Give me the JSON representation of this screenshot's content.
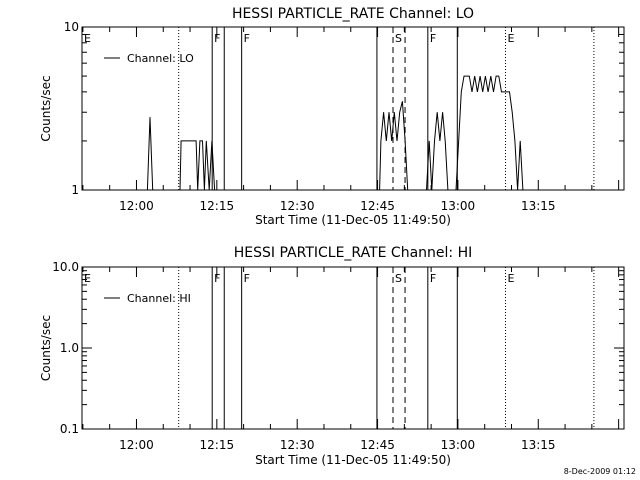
{
  "chart_data": [
    {
      "type": "line",
      "title": "HESSI PARTICLE_RATE Channel: LO",
      "xlabel": "Start Time (11-Dec-05 11:49:50)",
      "ylabel": "Counts/sec",
      "yscale": "log",
      "xlim": [
        "11:49:50",
        "13:31:00"
      ],
      "ylim": [
        1,
        10
      ],
      "y_ticks": [
        "1",
        "10"
      ],
      "x_ticks": [
        "12:00",
        "12:15",
        "12:30",
        "12:45",
        "13:00",
        "13:15"
      ],
      "legend": {
        "position": "top-left",
        "entries": [
          "Channel: LO"
        ]
      },
      "series": [
        {
          "name": "Channel: LO",
          "points": [
            [
              "12:02:02",
              1.0
            ],
            [
              "12:02:32",
              2.8
            ],
            [
              "12:03:02",
              1.0
            ],
            [
              "12:08:08",
              1.0
            ],
            [
              "12:08:20",
              2.0
            ],
            [
              "12:11:08",
              2.0
            ],
            [
              "12:11:26",
              1.0
            ],
            [
              "12:11:50",
              2.0
            ],
            [
              "12:12:20",
              2.0
            ],
            [
              "12:12:41",
              1.0
            ],
            [
              "12:13:02",
              2.0
            ],
            [
              "12:13:35",
              1.0
            ],
            [
              "12:14:05",
              2.0
            ],
            [
              "12:14:35",
              1.0
            ],
            [
              "12:45:23",
              1.0
            ],
            [
              "12:45:38",
              2.0
            ],
            [
              "12:46:08",
              3.0
            ],
            [
              "12:46:38",
              2.0
            ],
            [
              "12:47:08",
              3.0
            ],
            [
              "12:47:38",
              2.0
            ],
            [
              "12:48:08",
              3.0
            ],
            [
              "12:48:38",
              2.0
            ],
            [
              "12:49:08",
              3.0
            ],
            [
              "12:49:38",
              3.5
            ],
            [
              "12:50:08",
              2.0
            ],
            [
              "12:50:38",
              1.0
            ],
            [
              "12:54:08",
              1.0
            ],
            [
              "12:54:38",
              2.0
            ],
            [
              "12:55:08",
              1.0
            ],
            [
              "12:55:38",
              2.0
            ],
            [
              "12:56:08",
              3.0
            ],
            [
              "12:56:38",
              2.0
            ],
            [
              "12:57:08",
              3.0
            ],
            [
              "12:57:38",
              2.0
            ],
            [
              "12:58:08",
              1.0
            ],
            [
              "12:59:38",
              1.0
            ],
            [
              "13:00:38",
              4.0
            ],
            [
              "13:01:08",
              5.0
            ],
            [
              "13:02:08",
              5.0
            ],
            [
              "13:02:38",
              4.0
            ],
            [
              "13:03:08",
              5.0
            ],
            [
              "13:03:38",
              4.0
            ],
            [
              "13:04:08",
              5.0
            ],
            [
              "13:04:38",
              4.0
            ],
            [
              "13:05:08",
              5.0
            ],
            [
              "13:05:38",
              4.0
            ],
            [
              "13:06:08",
              5.0
            ],
            [
              "13:06:38",
              4.0
            ],
            [
              "13:07:08",
              5.0
            ],
            [
              "13:07:38",
              5.0
            ],
            [
              "13:08:08",
              4.0
            ],
            [
              "13:09:38",
              4.0
            ],
            [
              "13:10:08",
              3.0
            ],
            [
              "13:10:38",
              2.0
            ],
            [
              "13:11:08",
              1.0
            ],
            [
              "13:11:38",
              2.0
            ],
            [
              "13:12:08",
              1.0
            ]
          ]
        }
      ],
      "markers": [
        {
          "label": "E",
          "time": "11:49:50",
          "style": "none"
        },
        {
          "label": "",
          "time": "12:07:53",
          "style": "dotted"
        },
        {
          "label": "F",
          "time": "12:14:08",
          "style": "solid"
        },
        {
          "label": "",
          "time": "12:16:23",
          "style": "solid"
        },
        {
          "label": "F",
          "time": "12:19:38",
          "style": "solid"
        },
        {
          "label": "",
          "time": "12:44:53",
          "style": "solid"
        },
        {
          "label": "S",
          "time": "12:47:53",
          "style": "dashed"
        },
        {
          "label": "",
          "time": "12:50:08",
          "style": "dashed"
        },
        {
          "label": "F",
          "time": "12:54:23",
          "style": "solid"
        },
        {
          "label": "",
          "time": "12:59:53",
          "style": "solid"
        },
        {
          "label": "E",
          "time": "13:08:53",
          "style": "dotted"
        },
        {
          "label": "",
          "time": "13:25:23",
          "style": "dotted"
        }
      ]
    },
    {
      "type": "line",
      "title": "HESSI PARTICLE_RATE Channel: HI",
      "xlabel": "Start Time (11-Dec-05 11:49:50)",
      "ylabel": "Counts/sec",
      "yscale": "log",
      "xlim": [
        "11:49:50",
        "13:31:00"
      ],
      "ylim": [
        0.1,
        10
      ],
      "y_ticks": [
        "0.1",
        "1.0",
        "10.0"
      ],
      "x_ticks": [
        "12:00",
        "12:15",
        "12:30",
        "12:45",
        "13:00",
        "13:15"
      ],
      "legend": {
        "position": "top-left",
        "entries": [
          "Channel: HI"
        ]
      },
      "series": [
        {
          "name": "Channel: HI",
          "points": []
        }
      ],
      "markers": [
        {
          "label": "E",
          "time": "11:49:50",
          "style": "none"
        },
        {
          "label": "",
          "time": "12:07:53",
          "style": "dotted"
        },
        {
          "label": "F",
          "time": "12:14:08",
          "style": "solid"
        },
        {
          "label": "",
          "time": "12:16:23",
          "style": "solid"
        },
        {
          "label": "F",
          "time": "12:19:38",
          "style": "solid"
        },
        {
          "label": "",
          "time": "12:44:53",
          "style": "solid"
        },
        {
          "label": "S",
          "time": "12:47:53",
          "style": "dashed"
        },
        {
          "label": "",
          "time": "12:50:08",
          "style": "dashed"
        },
        {
          "label": "F",
          "time": "12:54:23",
          "style": "solid"
        },
        {
          "label": "",
          "time": "12:59:53",
          "style": "solid"
        },
        {
          "label": "E",
          "time": "13:08:53",
          "style": "dotted"
        },
        {
          "label": "",
          "time": "13:25:23",
          "style": "dotted"
        }
      ]
    }
  ],
  "footer": {
    "timestamp": "8-Dec-2009 01:12"
  }
}
